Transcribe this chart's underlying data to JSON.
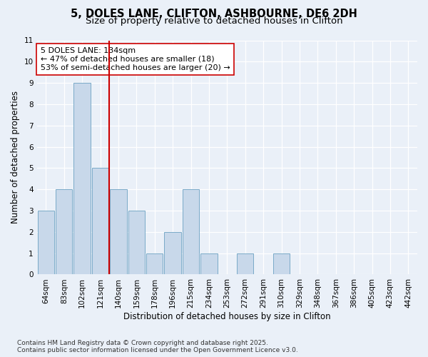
{
  "title_line1": "5, DOLES LANE, CLIFTON, ASHBOURNE, DE6 2DH",
  "title_line2": "Size of property relative to detached houses in Clifton",
  "categories": [
    "64sqm",
    "83sqm",
    "102sqm",
    "121sqm",
    "140sqm",
    "159sqm",
    "178sqm",
    "196sqm",
    "215sqm",
    "234sqm",
    "253sqm",
    "272sqm",
    "291sqm",
    "310sqm",
    "329sqm",
    "348sqm",
    "367sqm",
    "386sqm",
    "405sqm",
    "423sqm",
    "442sqm"
  ],
  "values": [
    3,
    4,
    9,
    5,
    4,
    3,
    1,
    2,
    4,
    1,
    0,
    1,
    0,
    1,
    0,
    0,
    0,
    0,
    0,
    0,
    0
  ],
  "bar_color": "#c8d8ea",
  "bar_edge_color": "#7aaac8",
  "red_line_x": 3.5,
  "red_line_color": "#cc0000",
  "annotation_text": "5 DOLES LANE: 134sqm\n← 47% of detached houses are smaller (18)\n53% of semi-detached houses are larger (20) →",
  "annotation_box_color": "#ffffff",
  "annotation_box_edge": "#cc0000",
  "ylabel": "Number of detached properties",
  "xlabel": "Distribution of detached houses by size in Clifton",
  "ylim": [
    0,
    11
  ],
  "yticks": [
    0,
    1,
    2,
    3,
    4,
    5,
    6,
    7,
    8,
    9,
    10,
    11
  ],
  "footnote_line1": "Contains HM Land Registry data © Crown copyright and database right 2025.",
  "footnote_line2": "Contains public sector information licensed under the Open Government Licence v3.0.",
  "background_color": "#eaf0f8",
  "grid_color": "#ffffff",
  "title_fontsize": 10.5,
  "subtitle_fontsize": 9.5,
  "axis_label_fontsize": 8.5,
  "tick_fontsize": 7.5,
  "annotation_fontsize": 8,
  "footnote_fontsize": 6.5
}
